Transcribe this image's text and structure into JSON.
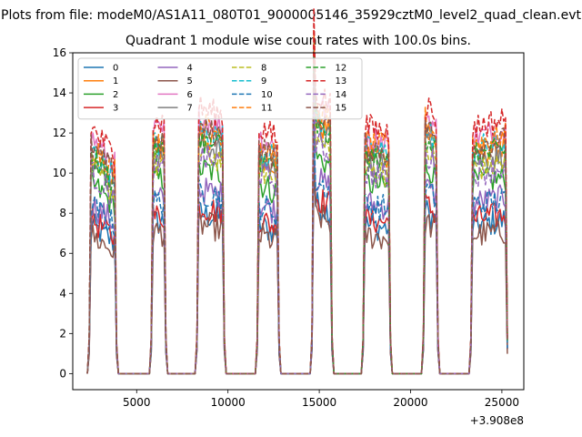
{
  "chart_data": {
    "type": "line",
    "suptitle": "Plots from file: modeM0/AS1A11_080T01_9000005146_35929cztM0_level2_quad_clean.evt",
    "title": "Quadrant 1 module wise count rates with 100.0s bins.",
    "xlabel": "",
    "ylabel": "",
    "offset_label": "+3.908e8",
    "xlim": [
      1500,
      26200
    ],
    "ylim": [
      -0.8,
      16
    ],
    "xticks": [
      5000,
      10000,
      15000,
      20000,
      25000
    ],
    "xtick_labels": [
      "5000",
      "10000",
      "15000",
      "20000",
      "25000"
    ],
    "yticks": [
      0,
      2,
      4,
      6,
      8,
      10,
      12,
      14,
      16
    ],
    "ytick_labels": [
      "0",
      "2",
      "4",
      "6",
      "8",
      "10",
      "12",
      "14",
      "16"
    ],
    "legend_position": "upper-left",
    "legend_columns": 4,
    "segments": [
      {
        "start": 2500,
        "end": 3800
      },
      {
        "start": 5900,
        "end": 6500
      },
      {
        "start": 8400,
        "end": 9700
      },
      {
        "start": 11700,
        "end": 12700
      },
      {
        "start": 14700,
        "end": 15600
      },
      {
        "start": 17500,
        "end": 18800
      },
      {
        "start": 20800,
        "end": 21400
      },
      {
        "start": 23400,
        "end": 25200
      }
    ],
    "bin_size": 100,
    "series": [
      {
        "name": "0",
        "color": "#1f77b4",
        "dash": "solid",
        "level": 7.4
      },
      {
        "name": "1",
        "color": "#ff7f0e",
        "dash": "solid",
        "level": 11.0
      },
      {
        "name": "2",
        "color": "#2ca02c",
        "dash": "solid",
        "level": 9.5
      },
      {
        "name": "3",
        "color": "#d62728",
        "dash": "solid",
        "level": 7.7
      },
      {
        "name": "4",
        "color": "#9467bd",
        "dash": "solid",
        "level": 8.5
      },
      {
        "name": "5",
        "color": "#8c564b",
        "dash": "solid",
        "level": 6.9
      },
      {
        "name": "6",
        "color": "#e377c2",
        "dash": "solid",
        "level": 11.8
      },
      {
        "name": "7",
        "color": "#7f7f7f",
        "dash": "solid",
        "level": 10.6
      },
      {
        "name": "8",
        "color": "#bcbd22",
        "dash": "dashed",
        "level": 10.2
      },
      {
        "name": "9",
        "color": "#17becf",
        "dash": "dashed",
        "level": 11.2
      },
      {
        "name": "10",
        "color": "#1f77b4",
        "dash": "dashed",
        "level": 8.4
      },
      {
        "name": "11",
        "color": "#ff7f0e",
        "dash": "dashed",
        "level": 11.5
      },
      {
        "name": "12",
        "color": "#2ca02c",
        "dash": "dashed",
        "level": 10.8
      },
      {
        "name": "13",
        "color": "#d62728",
        "dash": "dashed",
        "level": 12.3
      },
      {
        "name": "14",
        "color": "#9467bd",
        "dash": "dashed",
        "level": 10.0
      },
      {
        "name": "15",
        "color": "#8c564b",
        "dash": "dashed",
        "level": 11.3
      }
    ]
  }
}
